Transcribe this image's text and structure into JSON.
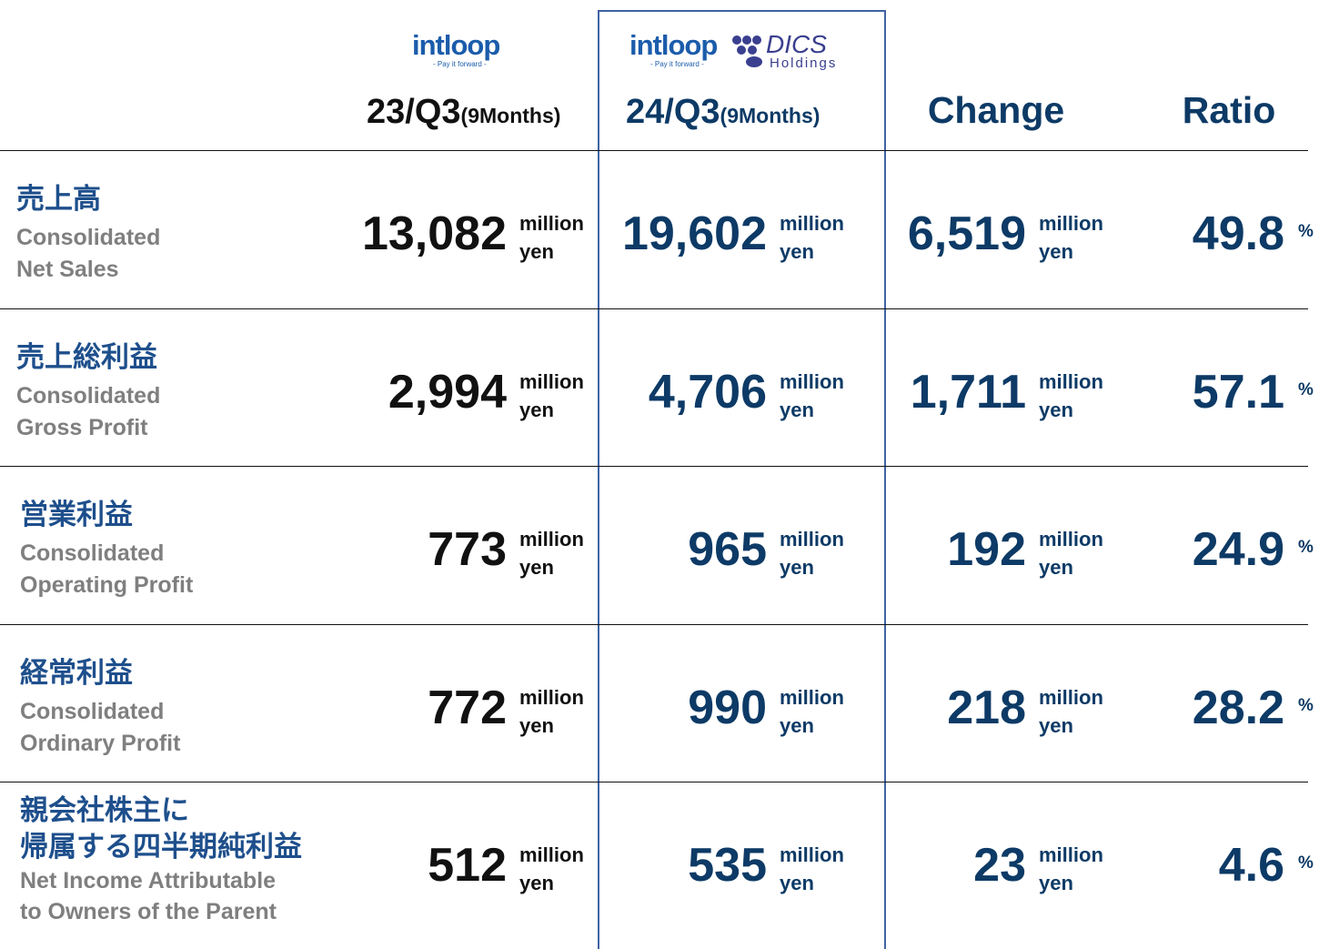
{
  "logos": {
    "intloop": "intloop",
    "tagline": "- Pay it forward -",
    "dics": "DICS",
    "holdings": "Holdings"
  },
  "header": {
    "prev": {
      "period": "23/Q3",
      "span": "(9Months)"
    },
    "curr": {
      "period": "24/Q3",
      "span": "(9Months)"
    },
    "change": "Change",
    "ratio": "Ratio"
  },
  "units": {
    "amount_top": "million",
    "amount_bottom": "yen",
    "ratio": "%"
  },
  "rows": [
    {
      "jp": [
        "売上高"
      ],
      "en": [
        "Consolidated",
        "Net Sales"
      ],
      "prev": "13,082",
      "curr": "19,602",
      "change": "6,519",
      "ratio": "49.8"
    },
    {
      "jp": [
        "売上総利益"
      ],
      "en": [
        "Consolidated",
        "Gross Profit"
      ],
      "prev": "2,994",
      "curr": "4,706",
      "change": "1,711",
      "ratio": "57.1"
    },
    {
      "jp": [
        "営業利益"
      ],
      "en": [
        "Consolidated",
        "Operating Profit"
      ],
      "prev": "773",
      "curr": "965",
      "change": "192",
      "ratio": "24.9"
    },
    {
      "jp": [
        "経常利益"
      ],
      "en": [
        "Consolidated",
        "Ordinary Profit"
      ],
      "prev": "772",
      "curr": "990",
      "change": "218",
      "ratio": "28.2"
    },
    {
      "jp": [
        "親会社株主に",
        "帰属する四半期純利益"
      ],
      "en": [
        "Net Income Attributable",
        "to Owners of the Parent"
      ],
      "prev": "512",
      "curr": "535",
      "change": "23",
      "ratio": "4.6"
    }
  ]
}
